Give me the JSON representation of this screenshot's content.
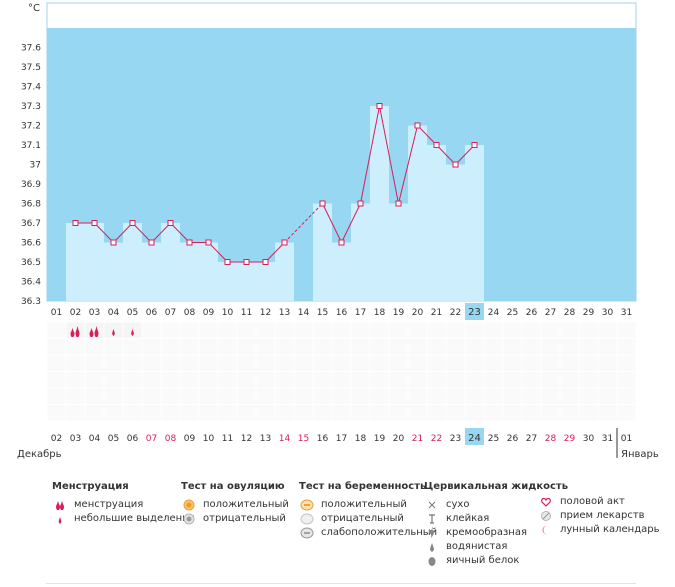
{
  "chart_data": {
    "type": "bar",
    "unit": "°C",
    "ylim": [
      36.3,
      37.7
    ],
    "yticks": [
      "36.3",
      "36.4",
      "36.5",
      "36.6",
      "36.7",
      "36.8",
      "36.9",
      "37",
      "37.1",
      "37.2",
      "37.3",
      "37.4",
      "37.5",
      "37.6"
    ],
    "cycle_days": [
      "01",
      "02",
      "03",
      "04",
      "05",
      "06",
      "07",
      "08",
      "09",
      "10",
      "11",
      "12",
      "13",
      "14",
      "15",
      "16",
      "17",
      "18",
      "19",
      "20",
      "21",
      "22",
      "23",
      "24",
      "25",
      "26",
      "27",
      "28",
      "29",
      "30",
      "31"
    ],
    "current_day_index": 22,
    "temperatures": [
      null,
      36.7,
      36.7,
      36.6,
      36.7,
      36.6,
      36.7,
      36.6,
      36.6,
      36.5,
      36.5,
      36.5,
      36.6,
      null,
      36.8,
      36.6,
      36.8,
      37.3,
      36.8,
      37.2,
      37.1,
      37.0,
      37.1,
      null,
      null,
      null,
      null,
      null,
      null,
      null,
      null
    ],
    "dashed_segment": [
      12,
      14
    ],
    "dates": [
      "02",
      "03",
      "04",
      "05",
      "06",
      "07",
      "08",
      "09",
      "10",
      "11",
      "12",
      "13",
      "14",
      "15",
      "16",
      "17",
      "18",
      "19",
      "20",
      "21",
      "22",
      "23",
      "24",
      "25",
      "26",
      "27",
      "28",
      "29",
      "30",
      "31",
      "01"
    ],
    "weekend_date_indices": [
      5,
      6,
      12,
      13,
      19,
      20,
      26,
      27
    ],
    "menstruation": [
      null,
      "heavy",
      "heavy",
      "light",
      "light",
      null,
      null,
      null,
      null,
      null,
      null,
      null,
      null,
      null,
      null,
      null,
      null,
      null,
      null,
      null,
      null,
      null,
      null,
      null,
      null,
      null,
      null,
      null,
      null,
      null,
      null
    ],
    "month_start": "Декабрь",
    "month_end": "Январь",
    "colors": {
      "chart_bg": "#97d7f2",
      "bar_fill": "#cdeefc",
      "current_day": "#97d7f2",
      "line": "#d81e5b",
      "weekend": "#d81e5b",
      "text": "#333333"
    }
  },
  "legend": {
    "menstruation": {
      "title": "Менструация",
      "items": [
        {
          "icon": "heavy-drop-icon",
          "label": "менструация"
        },
        {
          "icon": "light-drop-icon",
          "label": "небольшие выделения"
        }
      ]
    },
    "ovulation": {
      "title": "Тест на овуляцию",
      "items": [
        {
          "icon": "ovulation-positive-icon",
          "label": "положительный"
        },
        {
          "icon": "ovulation-negative-icon",
          "label": "отрицательный"
        }
      ]
    },
    "pregnancy": {
      "title": "Тест на беременность",
      "items": [
        {
          "icon": "pregnancy-positive-icon",
          "label": "положительный"
        },
        {
          "icon": "pregnancy-negative-icon",
          "label": "отрицательный"
        },
        {
          "icon": "pregnancy-weak-icon",
          "label": "слабоположительный"
        }
      ]
    },
    "cervical": {
      "title": "Цервикальная жидкость",
      "items": [
        {
          "icon": "dry-icon",
          "label": "сухо"
        },
        {
          "icon": "sticky-icon",
          "label": "клейкая"
        },
        {
          "icon": "creamy-icon",
          "label": "кремообразная"
        },
        {
          "icon": "watery-icon",
          "label": "водянистая"
        },
        {
          "icon": "egg-white-icon",
          "label": "яичный белок"
        }
      ]
    },
    "other": {
      "items": [
        {
          "icon": "heart-icon",
          "label": "половой акт"
        },
        {
          "icon": "pill-icon",
          "label": "прием лекарств"
        },
        {
          "icon": "moon-icon",
          "label": "лунный календарь"
        }
      ]
    }
  }
}
